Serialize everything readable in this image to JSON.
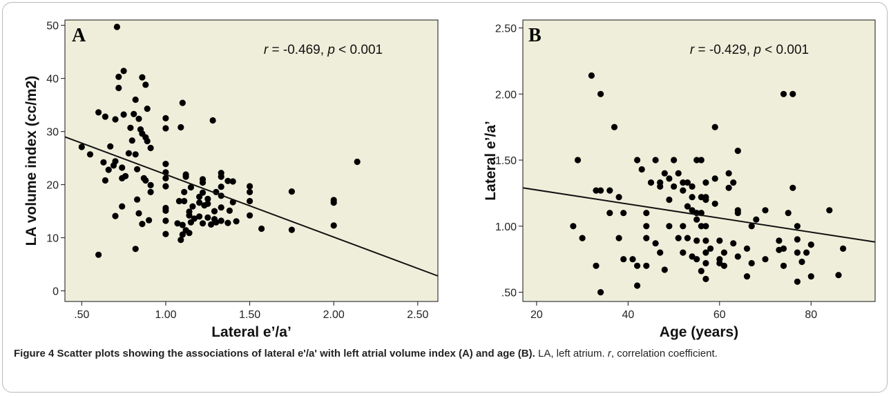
{
  "chart_data": [
    {
      "type": "scatter",
      "panel_label": "A",
      "annotation": {
        "r_symbol": "r",
        "r_text": " = -0.469, ",
        "p_symbol": "p",
        "p_text": " < 0.001"
      },
      "xlabel": "Lateral e’/a’",
      "ylabel": "LA volume index (cc/m2)",
      "xlim": [
        0.4,
        2.62
      ],
      "ylim": [
        -2,
        51
      ],
      "xticks": [
        0.5,
        1.0,
        1.5,
        2.0,
        2.5
      ],
      "xtick_labels": [
        ".50",
        "1.00",
        "1.50",
        "2.00",
        "2.50"
      ],
      "yticks": [
        0,
        10,
        20,
        30,
        40,
        50
      ],
      "ytick_labels": [
        "0",
        "10",
        "20",
        "30",
        "40",
        "50"
      ],
      "grid": false,
      "fit_line": {
        "x": [
          0.4,
          2.62
        ],
        "y": [
          29.0,
          2.8
        ]
      },
      "points": [
        [
          0.71,
          49.7
        ],
        [
          0.75,
          41.4
        ],
        [
          0.72,
          40.3
        ],
        [
          0.86,
          40.2
        ],
        [
          0.72,
          38.2
        ],
        [
          0.88,
          38.8
        ],
        [
          0.82,
          36.0
        ],
        [
          1.1,
          35.4
        ],
        [
          0.89,
          34.3
        ],
        [
          0.6,
          33.6
        ],
        [
          0.75,
          33.2
        ],
        [
          0.81,
          33.3
        ],
        [
          0.64,
          32.8
        ],
        [
          0.7,
          32.3
        ],
        [
          0.84,
          32.4
        ],
        [
          1.0,
          32.5
        ],
        [
          1.28,
          32.1
        ],
        [
          0.79,
          30.7
        ],
        [
          0.85,
          30.4
        ],
        [
          1.0,
          30.6
        ],
        [
          1.09,
          30.8
        ],
        [
          0.86,
          29.6
        ],
        [
          0.88,
          28.9
        ],
        [
          0.89,
          28.2
        ],
        [
          0.8,
          28.3
        ],
        [
          0.5,
          27.1
        ],
        [
          0.67,
          27.2
        ],
        [
          0.91,
          26.9
        ],
        [
          0.55,
          25.7
        ],
        [
          0.78,
          25.9
        ],
        [
          0.82,
          25.7
        ],
        [
          0.7,
          24.4
        ],
        [
          0.63,
          24.2
        ],
        [
          1.0,
          23.9
        ],
        [
          2.14,
          24.3
        ],
        [
          0.69,
          23.6
        ],
        [
          0.74,
          23.2
        ],
        [
          0.83,
          22.9
        ],
        [
          0.66,
          22.8
        ],
        [
          1.0,
          22.3
        ],
        [
          1.12,
          21.9
        ],
        [
          1.33,
          22.2
        ],
        [
          0.76,
          21.6
        ],
        [
          0.74,
          21.2
        ],
        [
          0.87,
          21.2
        ],
        [
          1.12,
          21.5
        ],
        [
          1.0,
          21.2
        ],
        [
          1.22,
          21.0
        ],
        [
          1.33,
          21.5
        ],
        [
          1.37,
          20.7
        ],
        [
          1.4,
          20.6
        ],
        [
          0.64,
          20.8
        ],
        [
          0.88,
          20.8
        ],
        [
          1.22,
          20.4
        ],
        [
          0.91,
          19.9
        ],
        [
          1.0,
          19.7
        ],
        [
          1.15,
          19.5
        ],
        [
          1.33,
          19.6
        ],
        [
          1.5,
          19.7
        ],
        [
          0.91,
          18.6
        ],
        [
          1.11,
          18.6
        ],
        [
          1.22,
          18.5
        ],
        [
          1.3,
          18.6
        ],
        [
          1.5,
          18.6
        ],
        [
          1.75,
          18.7
        ],
        [
          1.33,
          17.9
        ],
        [
          0.83,
          17.2
        ],
        [
          1.2,
          17.7
        ],
        [
          1.25,
          17.3
        ],
        [
          1.08,
          16.9
        ],
        [
          1.11,
          16.9
        ],
        [
          1.2,
          16.6
        ],
        [
          1.25,
          16.4
        ],
        [
          1.4,
          16.7
        ],
        [
          0.74,
          15.9
        ],
        [
          1.0,
          15.6
        ],
        [
          1.16,
          15.9
        ],
        [
          1.23,
          16.1
        ],
        [
          1.33,
          15.7
        ],
        [
          1.5,
          16.9
        ],
        [
          2.0,
          17.1
        ],
        [
          2.0,
          16.6
        ],
        [
          1.0,
          15.1
        ],
        [
          1.14,
          14.9
        ],
        [
          1.29,
          15.0
        ],
        [
          1.38,
          15.1
        ],
        [
          0.84,
          14.6
        ],
        [
          1.14,
          14.2
        ],
        [
          1.2,
          14.0
        ],
        [
          1.5,
          14.2
        ],
        [
          0.7,
          14.1
        ],
        [
          1.17,
          13.6
        ],
        [
          1.25,
          13.8
        ],
        [
          1.29,
          13.5
        ],
        [
          1.0,
          13.2
        ],
        [
          0.9,
          13.3
        ],
        [
          1.33,
          13.2
        ],
        [
          1.42,
          13.1
        ],
        [
          0.86,
          12.6
        ],
        [
          1.07,
          12.7
        ],
        [
          1.1,
          12.4
        ],
        [
          1.15,
          12.9
        ],
        [
          1.22,
          12.7
        ],
        [
          1.27,
          12.5
        ],
        [
          1.3,
          12.9
        ],
        [
          1.37,
          12.8
        ],
        [
          1.12,
          11.4
        ],
        [
          1.57,
          11.7
        ],
        [
          1.75,
          11.5
        ],
        [
          2.0,
          12.3
        ],
        [
          1.0,
          10.7
        ],
        [
          1.1,
          10.6
        ],
        [
          1.14,
          10.9
        ],
        [
          1.09,
          9.6
        ],
        [
          0.82,
          7.9
        ],
        [
          0.6,
          6.8
        ]
      ]
    },
    {
      "type": "scatter",
      "panel_label": "B",
      "annotation": {
        "r_symbol": "r",
        "r_text": " = -0.429, ",
        "p_symbol": "p",
        "p_text": " < 0.001"
      },
      "xlabel": "Age (years)",
      "ylabel": "Lateral e’/a’",
      "xlim": [
        17,
        94
      ],
      "ylim": [
        0.43,
        2.56
      ],
      "xticks": [
        20,
        40,
        60,
        80
      ],
      "xtick_labels": [
        "20",
        "40",
        "60",
        "80"
      ],
      "yticks": [
        0.5,
        1.0,
        1.5,
        2.0,
        2.5
      ],
      "ytick_labels": [
        ".50",
        "1.00",
        "1.50",
        "2.00",
        "2.50"
      ],
      "grid": false,
      "fit_line": {
        "x": [
          17,
          94
        ],
        "y": [
          1.29,
          0.88
        ]
      },
      "points": [
        [
          32,
          2.14
        ],
        [
          34,
          2.0
        ],
        [
          74,
          2.0
        ],
        [
          76,
          2.0
        ],
        [
          37,
          1.75
        ],
        [
          59,
          1.75
        ],
        [
          64,
          1.57
        ],
        [
          29,
          1.5
        ],
        [
          42,
          1.5
        ],
        [
          46,
          1.5
        ],
        [
          50,
          1.5
        ],
        [
          55,
          1.5
        ],
        [
          56,
          1.5
        ],
        [
          43,
          1.43
        ],
        [
          48,
          1.4
        ],
        [
          51,
          1.4
        ],
        [
          62,
          1.4
        ],
        [
          59,
          1.36
        ],
        [
          45,
          1.33
        ],
        [
          47,
          1.33
        ],
        [
          49,
          1.36
        ],
        [
          52,
          1.33
        ],
        [
          53,
          1.33
        ],
        [
          57,
          1.33
        ],
        [
          63,
          1.33
        ],
        [
          47,
          1.3
        ],
        [
          50,
          1.3
        ],
        [
          54,
          1.3
        ],
        [
          62,
          1.29
        ],
        [
          76,
          1.29
        ],
        [
          33,
          1.27
        ],
        [
          34,
          1.27
        ],
        [
          36,
          1.27
        ],
        [
          52,
          1.27
        ],
        [
          38,
          1.22
        ],
        [
          54,
          1.22
        ],
        [
          56,
          1.22
        ],
        [
          57,
          1.22
        ],
        [
          57,
          1.2
        ],
        [
          49,
          1.2
        ],
        [
          59,
          1.17
        ],
        [
          53,
          1.15
        ],
        [
          54,
          1.12
        ],
        [
          64,
          1.12
        ],
        [
          70,
          1.12
        ],
        [
          84,
          1.12
        ],
        [
          36,
          1.1
        ],
        [
          44,
          1.1
        ],
        [
          55,
          1.1
        ],
        [
          75,
          1.1
        ],
        [
          39,
          1.1
        ],
        [
          56,
          1.1
        ],
        [
          64,
          1.1
        ],
        [
          68,
          1.05
        ],
        [
          55,
          1.05
        ],
        [
          28,
          1.0
        ],
        [
          44,
          1.0
        ],
        [
          49,
          1.0
        ],
        [
          52,
          1.0
        ],
        [
          56,
          1.0
        ],
        [
          57,
          1.0
        ],
        [
          67,
          1.0
        ],
        [
          77,
          1.0
        ],
        [
          44,
          0.91
        ],
        [
          51,
          0.91
        ],
        [
          53,
          0.91
        ],
        [
          55,
          0.89
        ],
        [
          57,
          0.89
        ],
        [
          60,
          0.89
        ],
        [
          63,
          0.87
        ],
        [
          73,
          0.89
        ],
        [
          77,
          0.9
        ],
        [
          80,
          0.86
        ],
        [
          30,
          0.91
        ],
        [
          38,
          0.91
        ],
        [
          46,
          0.87
        ],
        [
          58,
          0.83
        ],
        [
          61,
          0.8
        ],
        [
          66,
          0.83
        ],
        [
          73,
          0.82
        ],
        [
          74,
          0.83
        ],
        [
          77,
          0.8
        ],
        [
          79,
          0.8
        ],
        [
          87,
          0.83
        ],
        [
          47,
          0.8
        ],
        [
          52,
          0.8
        ],
        [
          54,
          0.77
        ],
        [
          57,
          0.8
        ],
        [
          60,
          0.75
        ],
        [
          64,
          0.77
        ],
        [
          39,
          0.75
        ],
        [
          41,
          0.75
        ],
        [
          55,
          0.75
        ],
        [
          60,
          0.72
        ],
        [
          67,
          0.72
        ],
        [
          70,
          0.75
        ],
        [
          74,
          0.7
        ],
        [
          78,
          0.73
        ],
        [
          57,
          0.72
        ],
        [
          33,
          0.7
        ],
        [
          42,
          0.7
        ],
        [
          44,
          0.7
        ],
        [
          56,
          0.66
        ],
        [
          48,
          0.67
        ],
        [
          61,
          0.7
        ],
        [
          66,
          0.62
        ],
        [
          80,
          0.62
        ],
        [
          86,
          0.63
        ],
        [
          57,
          0.6
        ],
        [
          77,
          0.58
        ],
        [
          42,
          0.55
        ],
        [
          34,
          0.5
        ]
      ]
    }
  ],
  "caption": {
    "figure_label": "Figure 4",
    "title": " Scatter plots showing the associations of lateral e'/a' with left atrial volume index (A) and age (B).",
    "body_1": " LA, left atrium. ",
    "r_symbol": "r",
    "body_2": ", correlation coefficient."
  }
}
